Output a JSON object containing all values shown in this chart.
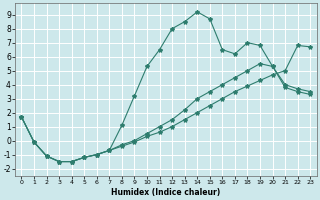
{
  "xlabel": "Humidex (Indice chaleur)",
  "xlim": [
    -0.5,
    23.5
  ],
  "ylim": [
    -2.5,
    9.8
  ],
  "xticks": [
    0,
    1,
    2,
    3,
    4,
    5,
    6,
    7,
    8,
    9,
    10,
    11,
    12,
    13,
    14,
    15,
    16,
    17,
    18,
    19,
    20,
    21,
    22,
    23
  ],
  "yticks": [
    -2,
    -1,
    0,
    1,
    2,
    3,
    4,
    5,
    6,
    7,
    8,
    9
  ],
  "bg_color": "#cde8eb",
  "grid_color": "#ffffff",
  "line_color": "#2e7d6e",
  "line1_x": [
    0,
    1,
    2,
    3,
    4,
    5,
    6,
    7,
    8,
    9,
    10,
    11,
    12,
    13,
    14,
    15,
    16,
    17,
    18,
    19,
    20,
    21,
    22,
    23
  ],
  "line1_y": [
    1.7,
    -0.1,
    -1.1,
    -1.5,
    -1.5,
    -1.2,
    -1.0,
    -0.7,
    1.1,
    3.2,
    5.3,
    6.5,
    8.0,
    8.5,
    9.2,
    8.7,
    6.5,
    6.2,
    7.0,
    6.8,
    5.3,
    4.0,
    3.7,
    3.5
  ],
  "line2_x": [
    0,
    1,
    2,
    3,
    4,
    5,
    6,
    7,
    8,
    9,
    10,
    11,
    12,
    13,
    14,
    15,
    16,
    17,
    18,
    19,
    20,
    21,
    22,
    23
  ],
  "line2_y": [
    1.7,
    -0.1,
    -1.1,
    -1.5,
    -1.5,
    -1.2,
    -1.0,
    -0.7,
    -0.3,
    0.0,
    0.5,
    1.0,
    1.5,
    2.2,
    3.0,
    3.5,
    4.0,
    4.5,
    5.0,
    5.5,
    5.3,
    3.8,
    3.5,
    3.3
  ],
  "line3_x": [
    0,
    1,
    2,
    3,
    4,
    5,
    6,
    7,
    8,
    9,
    10,
    11,
    12,
    13,
    14,
    15,
    16,
    17,
    18,
    19,
    20,
    21,
    22,
    23
  ],
  "line3_y": [
    1.7,
    -0.1,
    -1.1,
    -1.5,
    -1.5,
    -1.2,
    -1.0,
    -0.7,
    -0.4,
    -0.1,
    0.3,
    0.6,
    1.0,
    1.5,
    2.0,
    2.5,
    3.0,
    3.5,
    3.9,
    4.3,
    4.7,
    5.0,
    6.8,
    6.7
  ]
}
